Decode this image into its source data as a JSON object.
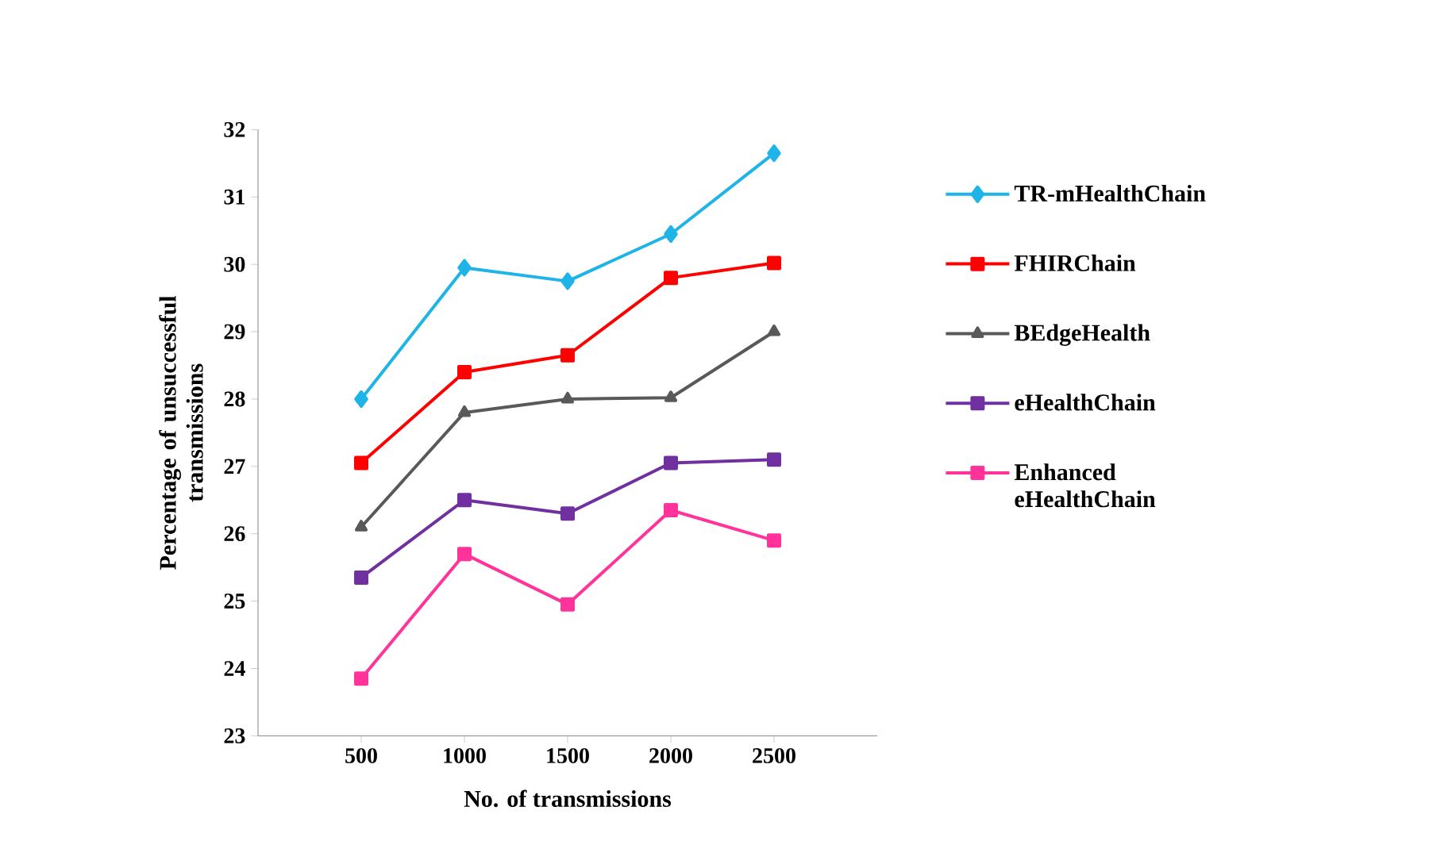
{
  "chart_data": {
    "type": "line",
    "xlabel": "No. of transmissions",
    "ylabel": "Percentage of unsuccessful transmissions",
    "x": [
      500,
      1000,
      1500,
      2000,
      2500
    ],
    "xlim": [
      0,
      3000
    ],
    "xticks": [
      500,
      1000,
      1500,
      2000,
      2500
    ],
    "ylim": [
      23,
      32
    ],
    "yticks": [
      23,
      24,
      25,
      26,
      27,
      28,
      29,
      30,
      31,
      32
    ],
    "legend": "right",
    "grid": false,
    "series": [
      {
        "name": "TR-mHealthChain",
        "color": "#1fb4e8",
        "marker": "diamond",
        "values": [
          28.0,
          29.95,
          29.75,
          30.45,
          31.65
        ]
      },
      {
        "name": "FHIRChain",
        "color": "#ff0000",
        "marker": "square",
        "values": [
          27.05,
          28.4,
          28.65,
          29.8,
          30.02
        ]
      },
      {
        "name": "BEdgeHealth",
        "color": "#595959",
        "marker": "triangle",
        "values": [
          26.1,
          27.8,
          28.0,
          28.02,
          29.0
        ]
      },
      {
        "name": "eHealthChain",
        "color": "#7030a0",
        "marker": "square",
        "values": [
          25.35,
          26.5,
          26.3,
          27.05,
          27.1
        ]
      },
      {
        "name": "Enhanced eHealthChain",
        "color": "#ff3399",
        "marker": "square",
        "values": [
          23.85,
          25.7,
          24.95,
          26.35,
          25.9
        ]
      }
    ]
  }
}
